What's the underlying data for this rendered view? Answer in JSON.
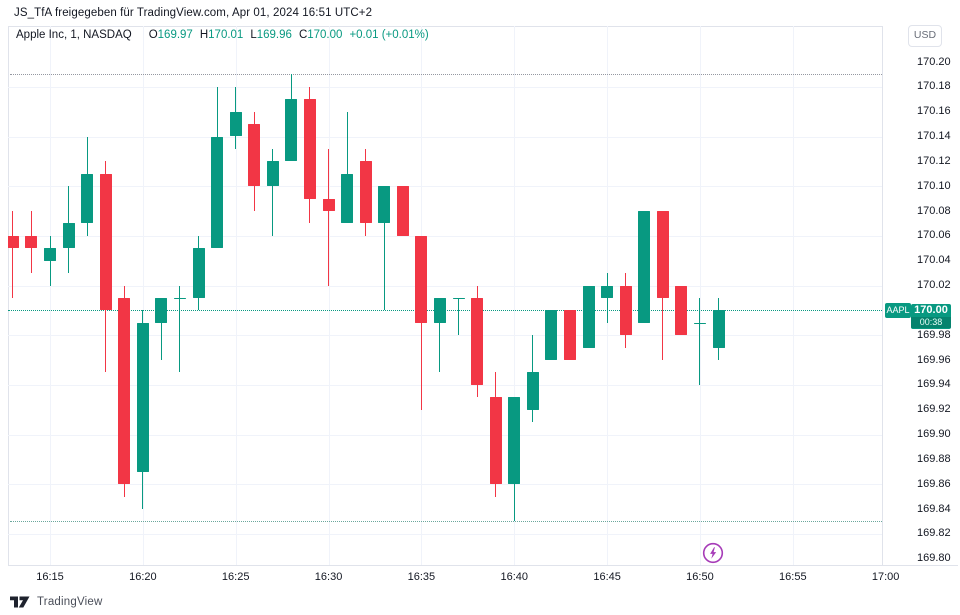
{
  "watermark": {
    "text": "JS_TfA freigegeben für TradingView.com, Apr 01, 2024 16:51 UTC+2"
  },
  "legend": {
    "symbol": "Apple Inc, 1, NASDAQ",
    "o_label": "O",
    "o": "169.97",
    "h_label": "H",
    "h": "170.01",
    "l_label": "L",
    "l": "169.96",
    "c_label": "C",
    "c": "170.00",
    "change": "+0.01 (+0.01%)"
  },
  "currency_button": {
    "label": "USD"
  },
  "price_line": {
    "ticker": "AAPL",
    "price": "170.00",
    "countdown": "00:38"
  },
  "footer": {
    "brand": "TradingView"
  },
  "icons": {
    "lightning_color": "#a63bb8"
  },
  "colors": {
    "up": "#089981",
    "down": "#f23645",
    "grid": "#f0f3fa",
    "high_line": "#9598a1",
    "low_line": "#6aa79c",
    "price_line": "#089981"
  },
  "chart_data": {
    "type": "candlestick",
    "title": "Apple Inc, 1, NASDAQ",
    "interval": "1 minute",
    "legend_ohlc": {
      "o": 169.97,
      "h": 170.01,
      "l": 169.96,
      "c": 170.0,
      "change": "+0.01 (+0.01%)"
    },
    "price_axis": {
      "min": 169.79,
      "max": 170.21,
      "tick_labels": [
        "170.20",
        "170.18",
        "170.16",
        "170.14",
        "170.12",
        "170.10",
        "170.08",
        "170.06",
        "170.04",
        "170.02",
        "170.00",
        "169.98",
        "169.96",
        "169.94",
        "169.92",
        "169.90",
        "169.88",
        "169.86",
        "169.84",
        "169.82",
        "169.80"
      ]
    },
    "time_axis": {
      "ticks": [
        {
          "label": "16:15",
          "m": 2
        },
        {
          "label": "16:20",
          "m": 7
        },
        {
          "label": "16:25",
          "m": 12
        },
        {
          "label": "16:30",
          "m": 17
        },
        {
          "label": "16:35",
          "m": 22
        },
        {
          "label": "16:40",
          "m": 27
        },
        {
          "label": "16:45",
          "m": 32
        },
        {
          "label": "16:50",
          "m": 37
        },
        {
          "label": "16:55",
          "m": 42
        },
        {
          "label": "17:00",
          "m": 47
        }
      ]
    },
    "grid_prices": [
      170.18,
      170.14,
      170.1,
      170.06,
      170.02,
      169.98,
      169.94,
      169.9,
      169.86,
      169.82
    ],
    "lines": {
      "last_price": 170.0,
      "session_high": 170.19,
      "session_low": 169.83
    },
    "countdown": "00:38",
    "candles": [
      {
        "t": "16:13",
        "o": 170.06,
        "h": 170.08,
        "l": 170.01,
        "c": 170.05
      },
      {
        "t": "16:14",
        "o": 170.06,
        "h": 170.08,
        "l": 170.03,
        "c": 170.05
      },
      {
        "t": "16:15",
        "o": 170.04,
        "h": 170.06,
        "l": 170.02,
        "c": 170.05
      },
      {
        "t": "16:16",
        "o": 170.05,
        "h": 170.1,
        "l": 170.03,
        "c": 170.07
      },
      {
        "t": "16:17",
        "o": 170.07,
        "h": 170.14,
        "l": 170.06,
        "c": 170.11
      },
      {
        "t": "16:18",
        "o": 170.11,
        "h": 170.12,
        "l": 169.95,
        "c": 170.0
      },
      {
        "t": "16:19",
        "o": 170.01,
        "h": 170.02,
        "l": 169.85,
        "c": 169.86
      },
      {
        "t": "16:20",
        "o": 169.87,
        "h": 170.0,
        "l": 169.84,
        "c": 169.99
      },
      {
        "t": "16:21",
        "o": 169.99,
        "h": 170.01,
        "l": 169.96,
        "c": 170.01
      },
      {
        "t": "16:22",
        "o": 170.01,
        "h": 170.02,
        "l": 169.95,
        "c": 170.01
      },
      {
        "t": "16:23",
        "o": 170.01,
        "h": 170.06,
        "l": 170.0,
        "c": 170.05
      },
      {
        "t": "16:24",
        "o": 170.05,
        "h": 170.18,
        "l": 170.05,
        "c": 170.14
      },
      {
        "t": "16:25",
        "o": 170.14,
        "h": 170.18,
        "l": 170.13,
        "c": 170.16
      },
      {
        "t": "16:26",
        "o": 170.15,
        "h": 170.16,
        "l": 170.08,
        "c": 170.1
      },
      {
        "t": "16:27",
        "o": 170.1,
        "h": 170.13,
        "l": 170.06,
        "c": 170.12
      },
      {
        "t": "16:28",
        "o": 170.12,
        "h": 170.19,
        "l": 170.12,
        "c": 170.17
      },
      {
        "t": "16:29",
        "o": 170.17,
        "h": 170.18,
        "l": 170.07,
        "c": 170.09
      },
      {
        "t": "16:30",
        "o": 170.09,
        "h": 170.13,
        "l": 170.02,
        "c": 170.08
      },
      {
        "t": "16:31",
        "o": 170.07,
        "h": 170.16,
        "l": 170.07,
        "c": 170.11
      },
      {
        "t": "16:32",
        "o": 170.12,
        "h": 170.13,
        "l": 170.06,
        "c": 170.07
      },
      {
        "t": "16:33",
        "o": 170.07,
        "h": 170.1,
        "l": 170.0,
        "c": 170.1
      },
      {
        "t": "16:34",
        "o": 170.1,
        "h": 170.1,
        "l": 170.06,
        "c": 170.06
      },
      {
        "t": "16:35",
        "o": 170.06,
        "h": 170.06,
        "l": 169.92,
        "c": 169.99
      },
      {
        "t": "16:36",
        "o": 169.99,
        "h": 170.01,
        "l": 169.95,
        "c": 170.01
      },
      {
        "t": "16:37",
        "o": 170.01,
        "h": 170.01,
        "l": 169.98,
        "c": 170.01
      },
      {
        "t": "16:38",
        "o": 170.01,
        "h": 170.02,
        "l": 169.93,
        "c": 169.94
      },
      {
        "t": "16:39",
        "o": 169.93,
        "h": 169.95,
        "l": 169.85,
        "c": 169.86
      },
      {
        "t": "16:40",
        "o": 169.86,
        "h": 169.93,
        "l": 169.83,
        "c": 169.93
      },
      {
        "t": "16:41",
        "o": 169.92,
        "h": 169.98,
        "l": 169.91,
        "c": 169.95
      },
      {
        "t": "16:42",
        "o": 169.96,
        "h": 170.0,
        "l": 169.96,
        "c": 170.0
      },
      {
        "t": "16:43",
        "o": 170.0,
        "h": 170.0,
        "l": 169.96,
        "c": 169.96
      },
      {
        "t": "16:44",
        "o": 169.97,
        "h": 170.02,
        "l": 169.97,
        "c": 170.02
      },
      {
        "t": "16:45",
        "o": 170.01,
        "h": 170.03,
        "l": 169.99,
        "c": 170.02
      },
      {
        "t": "16:46",
        "o": 170.02,
        "h": 170.03,
        "l": 169.97,
        "c": 169.98
      },
      {
        "t": "16:47",
        "o": 169.99,
        "h": 170.08,
        "l": 169.99,
        "c": 170.08
      },
      {
        "t": "16:48",
        "o": 170.08,
        "h": 170.08,
        "l": 169.96,
        "c": 170.01
      },
      {
        "t": "16:49",
        "o": 170.02,
        "h": 170.02,
        "l": 169.98,
        "c": 169.98
      },
      {
        "t": "16:50",
        "o": 169.99,
        "h": 170.01,
        "l": 169.94,
        "c": 169.99
      },
      {
        "t": "16:51",
        "o": 169.97,
        "h": 170.01,
        "l": 169.96,
        "c": 170.0
      }
    ]
  }
}
